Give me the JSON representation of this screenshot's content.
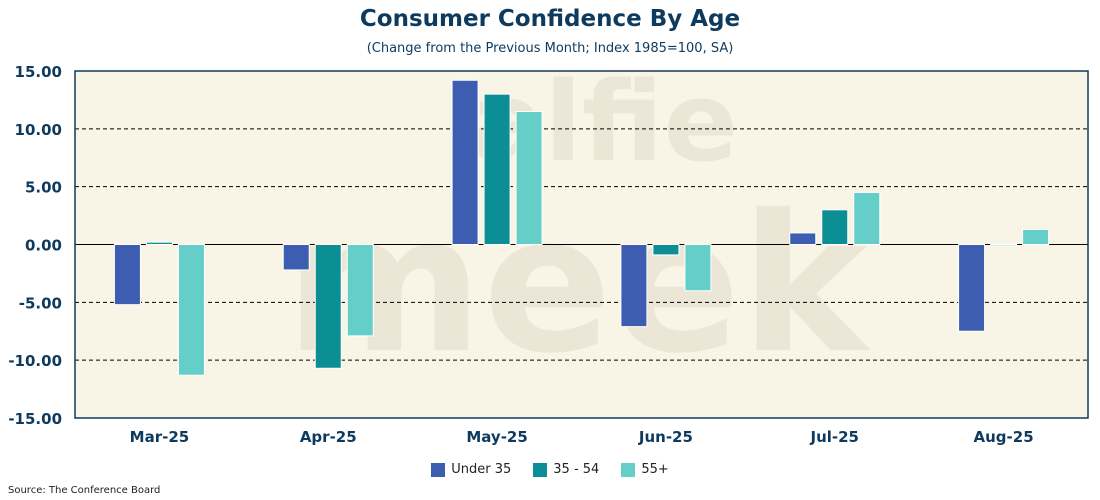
{
  "chart_data": {
    "type": "bar",
    "title": "Consumer Confidence By Age",
    "subtitle": "(Change from the Previous Month; Index 1985=100, SA)",
    "categories": [
      "Mar-25",
      "Apr-25",
      "May-25",
      "Jun-25",
      "Jul-25",
      "Aug-25"
    ],
    "series": [
      {
        "name": "Under 35",
        "color": "#3d5eb0",
        "values": [
          -5.2,
          -2.2,
          14.2,
          -7.1,
          1.0,
          -7.5
        ]
      },
      {
        "name": "35 - 54",
        "color": "#0b8f94",
        "values": [
          0.2,
          -10.7,
          13.0,
          -0.9,
          3.0,
          -0.1
        ]
      },
      {
        "name": "55+",
        "color": "#66cec9",
        "values": [
          -11.3,
          -7.9,
          11.5,
          -4.0,
          4.5,
          1.3
        ]
      }
    ],
    "ylim": [
      -15,
      15
    ],
    "yticks": [
      "15.00",
      "10.00",
      "5.00",
      "0.00",
      "-5.00",
      "-10.00",
      "-15.00"
    ],
    "ytick_values": [
      15,
      10,
      5,
      0,
      -5,
      -10,
      -15
    ],
    "grid": true,
    "legend": "bottom",
    "plot_bg": "#f8f5e6",
    "axis_color": "#0e3a5e",
    "source": "Source: The Conference Board",
    "watermark": "alfie meek"
  }
}
